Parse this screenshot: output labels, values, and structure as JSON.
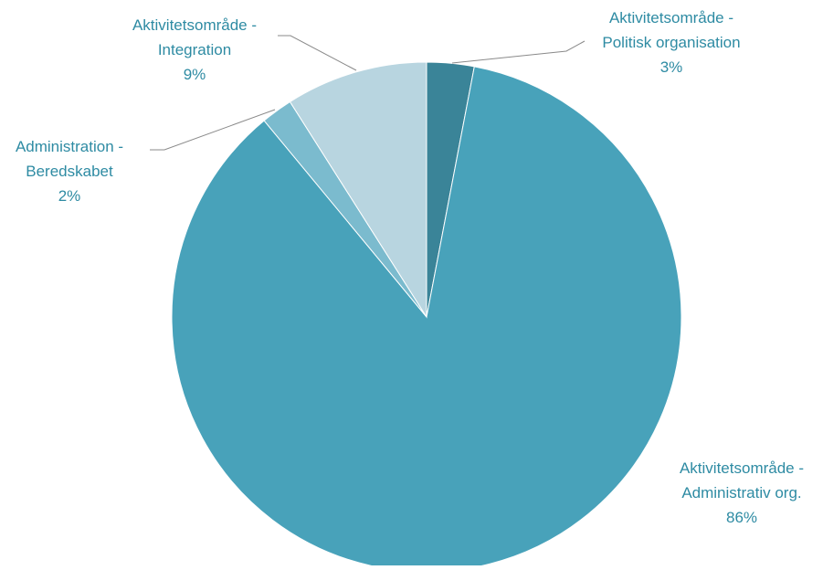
{
  "chart_data": {
    "type": "pie",
    "start_angle_deg": 0,
    "direction": "clockwise",
    "label_color": "#2E8BA3",
    "leader_color": "#8A8A8A",
    "slices": [
      {
        "name": "Aktivitetsområde - Politisk organisation",
        "label_lines": [
          "Aktivitetsområde -",
          "Politisk organisation",
          "3%"
        ],
        "value": 3,
        "percent_label": "3%",
        "color": "#3A8498"
      },
      {
        "name": "Aktivitetsområde - Administrativ org.",
        "label_lines": [
          "Aktivitetsområde -",
          "Administrativ org.",
          "86%"
        ],
        "value": 86,
        "percent_label": "86%",
        "color": "#48A2BA"
      },
      {
        "name": "Administration - Beredskabet",
        "label_lines": [
          "Administration -",
          "Beredskabet",
          "2%"
        ],
        "value": 2,
        "percent_label": "2%",
        "color": "#7BBBCE"
      },
      {
        "name": "Aktivitetsområde - Integration",
        "label_lines": [
          "Aktivitetsområde -",
          "Integration",
          "9%"
        ],
        "value": 9,
        "percent_label": "9%",
        "color": "#B8D5E0"
      }
    ]
  }
}
